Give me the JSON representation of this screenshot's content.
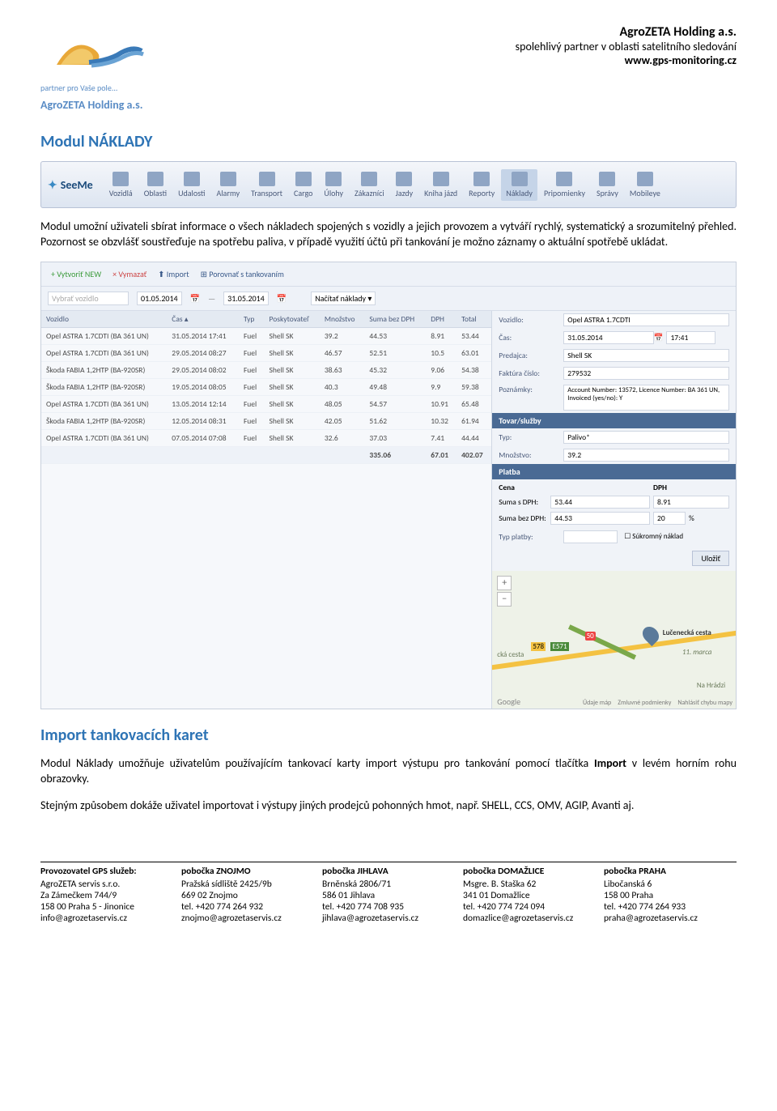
{
  "header": {
    "logo_tagline": "partner pro Vaše pole...",
    "logo_company": "AgroZETA Holding a.s.",
    "right_title": "AgroZETA Holding a.s.",
    "right_sub": "spolehlivý partner v oblasti satelitního sledování",
    "right_url": "www.gps-monitoring.cz"
  },
  "section1_title": "Modul NÁKLADY",
  "navbar": {
    "brand": "SeeMe",
    "items": [
      "Vozidlá",
      "Oblasti",
      "Udalosti",
      "Alarmy",
      "Transport",
      "Cargo",
      "Úlohy",
      "Zákazníci",
      "Jazdy",
      "Kniha jázd",
      "Reporty",
      "Náklady",
      "Pripomienky",
      "Správy",
      "Mobileye"
    ],
    "active_index": 11
  },
  "para1": "Modul umožní uživateli sbírat informace o všech nákladech spojených s vozidly a jejich provozem a vytváří rychlý, systematický a srozumitelný přehled. Pozornost se obzvlášť soustřeďuje na spotřebu paliva, v případě využití účtů při tankování je možno záznamy o aktuální spotřebě ukládat.",
  "screenshot": {
    "toolbar": {
      "btn_create": "+ Vytvoriť NEW",
      "btn_delete": "× Vymazať",
      "btn_import": "⬆ Import",
      "btn_compare": "⊞ Porovnať s tankovaním",
      "date_from": "01.05.2014",
      "date_to": "31.05.2014",
      "btn_load": "Načítať náklady ▾",
      "select_vehicle": "Vybrať vozidlo"
    },
    "columns": [
      "Vozidlo",
      "Čas ▴",
      "Typ",
      "Poskytovateľ",
      "Množstvo",
      "Suma bez DPH",
      "DPH",
      "Total"
    ],
    "rows": [
      [
        "Opel ASTRA 1.7CDTI (BA 361 UN)",
        "31.05.2014 17:41",
        "Fuel",
        "Shell SK",
        "39.2",
        "44.53",
        "8.91",
        "53.44"
      ],
      [
        "Opel ASTRA 1.7CDTI (BA 361 UN)",
        "29.05.2014 08:27",
        "Fuel",
        "Shell SK",
        "46.57",
        "52.51",
        "10.5",
        "63.01"
      ],
      [
        "Škoda FABIA 1,2HTP (BA-920SR)",
        "29.05.2014 08:02",
        "Fuel",
        "Shell SK",
        "38.63",
        "45.32",
        "9.06",
        "54.38"
      ],
      [
        "Škoda FABIA 1,2HTP (BA-920SR)",
        "19.05.2014 08:05",
        "Fuel",
        "Shell SK",
        "40.3",
        "49.48",
        "9.9",
        "59.38"
      ],
      [
        "Opel ASTRA 1.7CDTI (BA 361 UN)",
        "13.05.2014 12:14",
        "Fuel",
        "Shell SK",
        "48.05",
        "54.57",
        "10.91",
        "65.48"
      ],
      [
        "Škoda FABIA 1,2HTP (BA-920SR)",
        "12.05.2014 08:31",
        "Fuel",
        "Shell SK",
        "42.05",
        "51.62",
        "10.32",
        "61.94"
      ],
      [
        "Opel ASTRA 1.7CDTI (BA 361 UN)",
        "07.05.2014 07:08",
        "Fuel",
        "Shell SK",
        "32.6",
        "37.03",
        "7.41",
        "44.44"
      ]
    ],
    "totals": [
      "",
      "",
      "",
      "",
      "",
      "335.06",
      "67.01",
      "402.07"
    ],
    "detail": {
      "lbl_vehicle": "Vozidlo:",
      "val_vehicle": "Opel ASTRA 1.7CDTI",
      "lbl_time": "Čas:",
      "val_date": "31.05.2014",
      "val_time": "17:41",
      "lbl_seller": "Predajca:",
      "val_seller": "Shell SK",
      "lbl_invoice": "Faktúra číslo:",
      "val_invoice": "279532",
      "lbl_notes": "Poznámky:",
      "val_notes": "Account Number: 13572, Licence Number: BA 361 UN, Invoiced (yes/no): Y",
      "bar_goods": "Tovar/služby",
      "lbl_type": "Typ:",
      "val_type": "Palivo*",
      "lbl_qty": "Množstvo:",
      "val_qty": "39.2",
      "bar_payment": "Platba",
      "lbl_price": "Cena",
      "lbl_dph": "DPH",
      "lbl_sum_dph": "Suma s DPH:",
      "val_sum_dph": "53.44",
      "val_dph": "8.91",
      "lbl_sum_nodph": "Suma bez DPH:",
      "val_sum_nodph": "44.53",
      "val_pct": "20",
      "pct": "%",
      "lbl_paytype": "Typ platby:",
      "chk_private": "Súkromný náklad",
      "btn_save": "Uložiť",
      "map": {
        "street": "Lučenecká cesta",
        "street2": "cká cesta",
        "street3": "Na Hrádzi",
        "date": "11. marca",
        "route1": "578",
        "route2": "E571",
        "route3": "50",
        "goog": "Google",
        "f1": "Údaje máp",
        "f2": "Zmluvné podmienky",
        "f3": "Nahlásiť chybu mapy"
      }
    }
  },
  "section2_title": "Import tankovacích karet",
  "para2a": "Modul Náklady umožňuje uživatelům používajícím tankovací karty import výstupu pro tankování pomocí tlačítka ",
  "para2a_bold": "Import",
  "para2a_end": " v levém horním rohu obrazovky.",
  "para2b": "Stejným způsobem dokáže uživatel importovat i  výstupy jiných prodejců pohonných hmot, např.  SHELL,   CCS,   OMV,   AGIP, Avanti aj.",
  "footer": {
    "cols": [
      {
        "h": "Provozovatel GPS služeb:",
        "lines": [
          "AgroZETA servis s.r.o.",
          "Za Zámečkem 744/9",
          "158 00  Praha 5 - Jinonice",
          "info@agrozetaservis.cz"
        ]
      },
      {
        "h": "pobočka ZNOJMO",
        "lines": [
          "Pražská sídliště 2425/9b",
          "669 02  Znojmo",
          "tel. +420 774 264 932",
          "znojmo@agrozetaservis.cz"
        ]
      },
      {
        "h": "pobočka JIHLAVA",
        "lines": [
          "Brněnská 2806/71",
          "586 01  Jihlava",
          "tel. +420 774 708 935",
          "jihlava@agrozetaservis.cz"
        ]
      },
      {
        "h": "pobočka DOMAŽLICE",
        "lines": [
          "Msgre. B. Staška 62",
          "341 01 Domažlice",
          "tel. +420 774 724 094",
          "domazlice@agrozetaservis.cz"
        ]
      },
      {
        "h": "pobočka PRAHA",
        "lines": [
          "Libočanská 6",
          "158 00  Praha",
          "tel. +420 774 264 933",
          "praha@agrozetaservis.cz"
        ]
      }
    ]
  }
}
